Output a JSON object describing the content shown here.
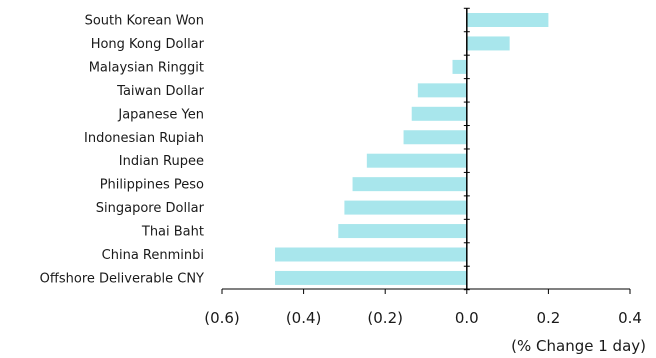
{
  "chart_data": {
    "type": "bar",
    "orientation": "horizontal",
    "categories": [
      "South Korean Won",
      "Hong Kong Dollar",
      "Malaysian Ringgit",
      "Taiwan Dollar",
      "Japanese Yen",
      "Indonesian Rupiah",
      "Indian Rupee",
      "Philippines Peso",
      "Singapore Dollar",
      "Thai Baht",
      "China Renminbi",
      "Offshore Deliverable CNY"
    ],
    "values": [
      0.2,
      0.105,
      -0.035,
      -0.12,
      -0.135,
      -0.155,
      -0.245,
      -0.28,
      -0.3,
      -0.315,
      -0.47,
      -0.47
    ],
    "xlim": [
      -0.6,
      0.4
    ],
    "xticks": [
      -0.6,
      -0.4,
      -0.2,
      0.0,
      0.2,
      0.4
    ],
    "xtick_labels": [
      "(0.6)",
      "(0.4)",
      "(0.2)",
      "0.0",
      "0.2",
      "0.4"
    ],
    "xlabel": "(% Change 1 day)",
    "bar_color": "#a8e6ec",
    "axis_color": "#000000",
    "grid": false
  }
}
